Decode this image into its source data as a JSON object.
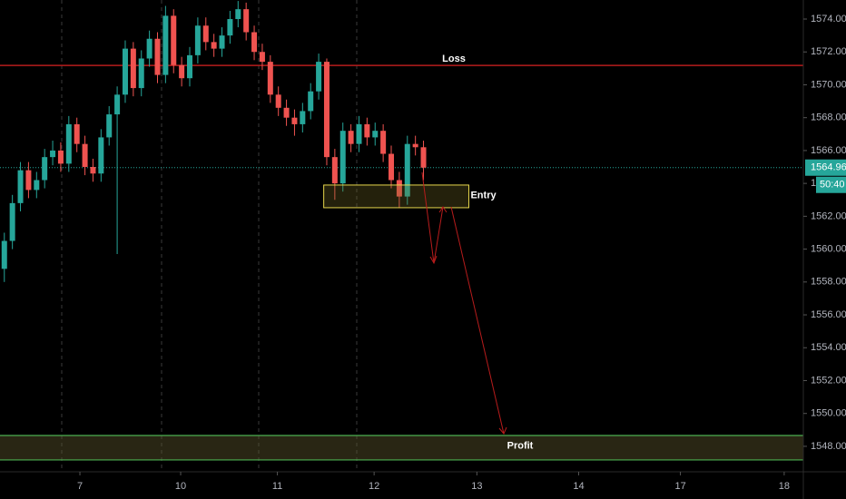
{
  "chart_data": {
    "type": "candlestick",
    "x": [
      -0.75,
      -0.67,
      -0.59,
      -0.51,
      -0.43,
      -0.35,
      -0.27,
      -0.19,
      -0.11,
      -0.03,
      0.05,
      0.13,
      0.21,
      0.29,
      0.37,
      0.45,
      0.53,
      0.61,
      0.69,
      0.77,
      0.85,
      0.93,
      1.01,
      1.09,
      1.17,
      1.25,
      1.33,
      1.41,
      1.49,
      1.57,
      1.65,
      1.73,
      1.81,
      1.89,
      1.97,
      2.05,
      2.13,
      2.21,
      2.29,
      2.37,
      2.45,
      2.53,
      2.61,
      2.69,
      2.77,
      2.85,
      2.93,
      3.01,
      3.09,
      3.17,
      3.25,
      3.33,
      3.41
    ],
    "open": [
      1558.8,
      1560.5,
      1562.8,
      1564.8,
      1563.6,
      1564.2,
      1565.6,
      1566.0,
      1565.2,
      1567.6,
      1566.4,
      1565.0,
      1564.6,
      1566.8,
      1568.2,
      1569.4,
      1572.2,
      1569.8,
      1571.6,
      1572.8,
      1570.6,
      1574.2,
      1571.2,
      1570.4,
      1571.8,
      1573.6,
      1572.6,
      1572.2,
      1573.0,
      1574.0,
      1574.6,
      1573.2,
      1572.0,
      1571.4,
      1569.4,
      1568.6,
      1568.0,
      1567.6,
      1568.4,
      1569.6,
      1571.4,
      1565.6,
      1564.0,
      1567.2,
      1566.4,
      1567.6,
      1566.8,
      1567.2,
      1565.8,
      1564.2,
      1563.2,
      1566.4,
      1566.2
    ],
    "high": [
      1561.0,
      1563.3,
      1565.3,
      1565.3,
      1564.7,
      1566.1,
      1566.6,
      1566.5,
      1568.1,
      1568.0,
      1566.9,
      1565.5,
      1567.3,
      1568.7,
      1569.9,
      1572.7,
      1572.6,
      1572.1,
      1573.3,
      1573.2,
      1574.8,
      1574.6,
      1571.7,
      1572.3,
      1574.1,
      1574.1,
      1573.1,
      1573.5,
      1574.5,
      1575.1,
      1575.0,
      1573.6,
      1572.5,
      1571.8,
      1569.9,
      1569.1,
      1568.5,
      1568.9,
      1570.1,
      1571.9,
      1571.6,
      1566.1,
      1567.7,
      1567.6,
      1568.1,
      1568.0,
      1567.7,
      1567.6,
      1566.3,
      1564.7,
      1566.9,
      1566.9,
      1566.6
    ],
    "low": [
      1558.0,
      1560.0,
      1562.3,
      1563.1,
      1563.1,
      1563.7,
      1565.1,
      1564.7,
      1564.7,
      1565.9,
      1564.5,
      1564.1,
      1564.1,
      1566.3,
      1559.7,
      1568.9,
      1569.3,
      1569.3,
      1571.1,
      1570.1,
      1570.1,
      1570.7,
      1569.9,
      1569.9,
      1571.3,
      1572.1,
      1571.7,
      1571.7,
      1572.5,
      1573.5,
      1572.7,
      1571.5,
      1570.9,
      1568.9,
      1568.1,
      1567.5,
      1566.9,
      1567.1,
      1567.9,
      1569.1,
      1565.1,
      1563.0,
      1563.5,
      1565.9,
      1565.9,
      1566.3,
      1566.3,
      1565.3,
      1563.7,
      1562.5,
      1562.7,
      1565.7,
      1564.2
    ],
    "close": [
      1560.5,
      1562.8,
      1564.8,
      1563.6,
      1564.2,
      1565.6,
      1566.0,
      1565.2,
      1567.6,
      1566.4,
      1565.0,
      1564.6,
      1566.8,
      1568.2,
      1569.4,
      1572.2,
      1569.8,
      1571.6,
      1572.8,
      1570.6,
      1574.2,
      1571.2,
      1570.4,
      1571.8,
      1573.6,
      1572.6,
      1572.2,
      1573.0,
      1574.0,
      1574.6,
      1573.2,
      1572.0,
      1571.4,
      1569.4,
      1568.6,
      1568.0,
      1567.6,
      1568.4,
      1569.6,
      1571.4,
      1565.6,
      1564.0,
      1567.2,
      1566.4,
      1567.6,
      1566.8,
      1567.2,
      1565.8,
      1564.2,
      1563.2,
      1566.4,
      1566.2,
      1564.96
    ],
    "up_color": "#26a69a",
    "down_color": "#ef5350",
    "xlim": [
      -0.793,
      7.18
    ],
    "xticks": [
      {
        "value": 0,
        "label": "7"
      },
      {
        "value": 1,
        "label": "10"
      },
      {
        "value": 1.96,
        "label": "11"
      },
      {
        "value": 2.92,
        "label": "12"
      },
      {
        "value": 3.94,
        "label": "13"
      },
      {
        "value": 4.95,
        "label": "14"
      },
      {
        "value": 5.96,
        "label": "17"
      },
      {
        "value": 6.99,
        "label": "18"
      }
    ],
    "ylim": [
      1546.45,
      1575.16
    ],
    "yticks": [
      {
        "value": 1548,
        "label": "1548.00"
      },
      {
        "value": 1550,
        "label": "1550.00"
      },
      {
        "value": 1552,
        "label": "1552.00"
      },
      {
        "value": 1554,
        "label": "1554.00"
      },
      {
        "value": 1556,
        "label": "1556.00"
      },
      {
        "value": 1558,
        "label": "1558.00"
      },
      {
        "value": 1560,
        "label": "1560.00"
      },
      {
        "value": 1562,
        "label": "1562.00"
      },
      {
        "value": 1564,
        "label": "1564.00"
      },
      {
        "value": 1566,
        "label": "1566.00"
      },
      {
        "value": 1568,
        "label": "1568.00"
      },
      {
        "value": 1570,
        "label": "1570.00"
      },
      {
        "value": 1572,
        "label": "1572.00"
      },
      {
        "value": 1574,
        "label": "1574.00"
      }
    ],
    "loss": {
      "label": "Loss",
      "value": 1571.18,
      "color": "#b71c1c"
    },
    "entry": {
      "label": "Entry",
      "range": [
        1562.52,
        1563.9
      ],
      "x_range": [
        2.42,
        3.86
      ],
      "color": "#e6d64c"
    },
    "profit": {
      "label": "Profit",
      "range": [
        1547.17,
        1548.66
      ],
      "color": "#4caf50"
    },
    "last_price": {
      "value": 1564.96,
      "countdown": "50:40",
      "color": "#26a69a"
    }
  }
}
